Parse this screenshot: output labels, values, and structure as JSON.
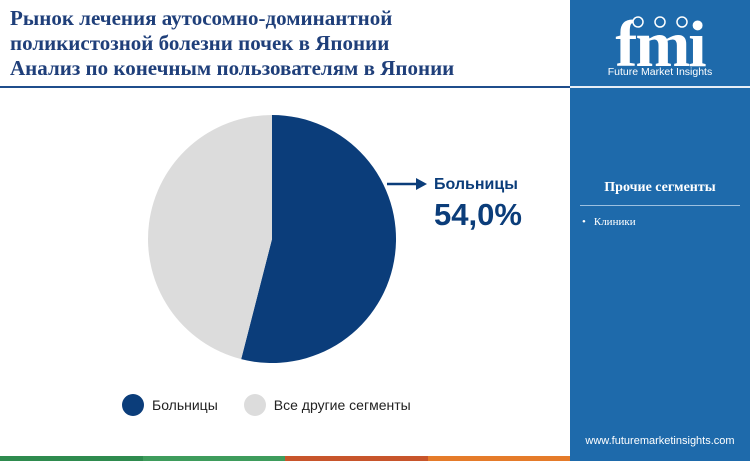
{
  "title_lines": [
    "Рынок лечения аутосомно-доминантной",
    "поликистозной болезни почек в Японии",
    "Анализ по конечным пользователям в Японии"
  ],
  "callout": {
    "category": "Больницы",
    "value_text": "54,0%"
  },
  "legend": [
    {
      "label": "Больницы",
      "color": "#0b3d7a"
    },
    {
      "label": "Все другие сегменты",
      "color": "#dcdcdc"
    }
  ],
  "chart_data": {
    "type": "pie",
    "title": "",
    "slices": [
      {
        "label": "Больницы",
        "value": 54.0,
        "color": "#0b3d7a"
      },
      {
        "label": "Все другие сегменты",
        "value": 46.0,
        "color": "#dcdcdc"
      }
    ],
    "start_angle_deg": 0,
    "direction": "clockwise",
    "data_labels": [
      {
        "label": "Больницы",
        "text": "54,0%"
      }
    ],
    "legend_position": "bottom"
  },
  "brand": {
    "logo_text": "fmi",
    "name": "Future Market Insights",
    "url": "www.futuremarketinsights.com",
    "panel_color": "#1e6aab"
  },
  "side_panel": {
    "heading": "Прочие сегменты",
    "items": [
      "Клиники"
    ]
  },
  "bottom_bar_colors": [
    "#2e8b4e",
    "#3e9c5c",
    "#c8552b",
    "#e57b2a"
  ]
}
